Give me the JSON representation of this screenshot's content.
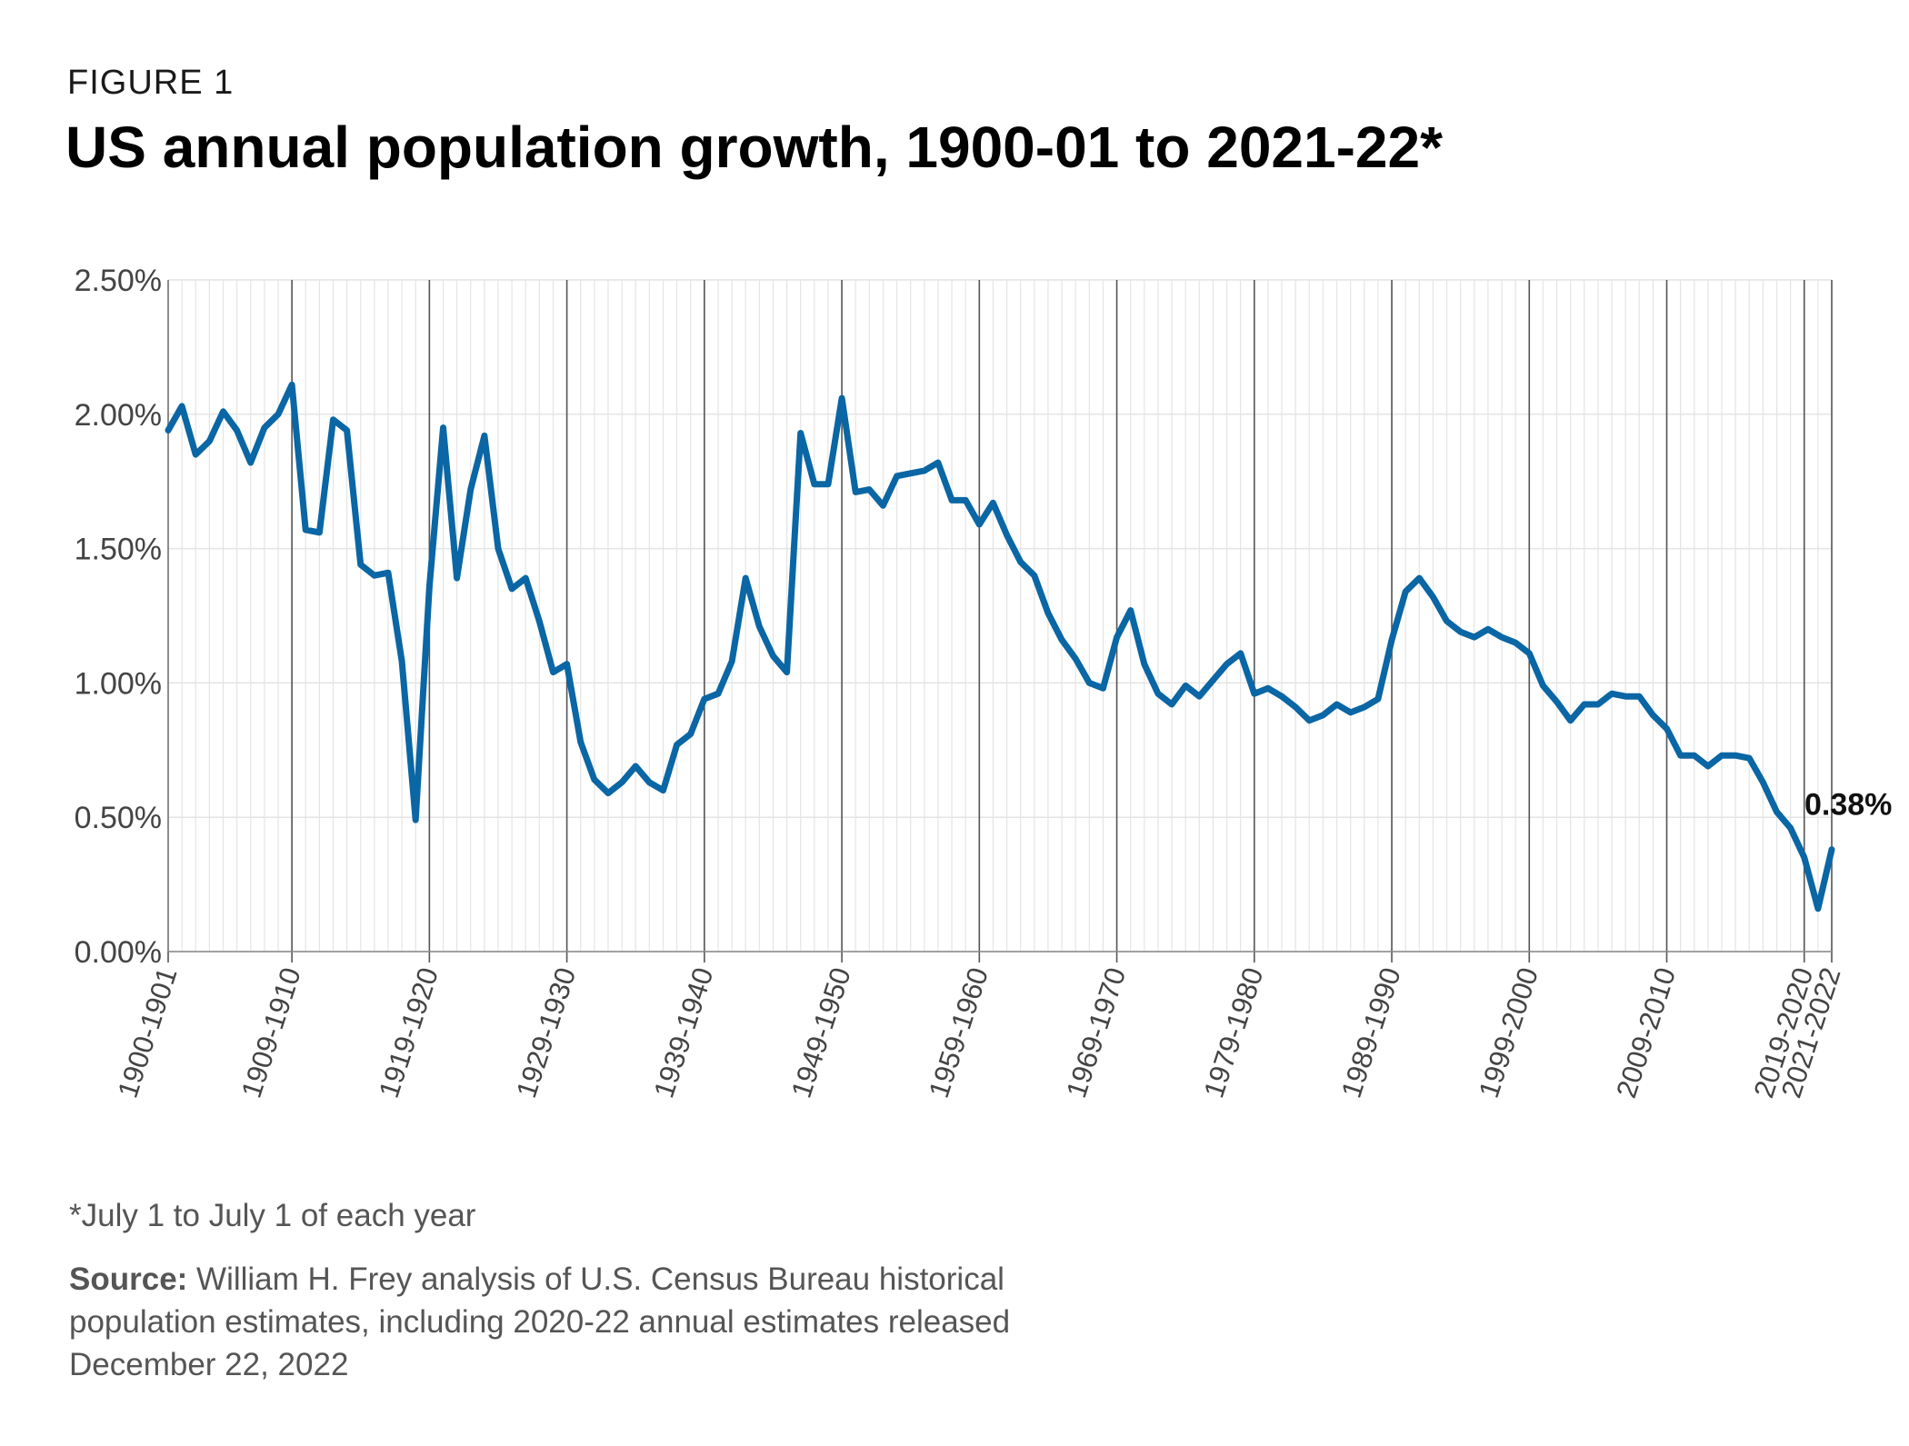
{
  "figure_label": "FIGURE 1",
  "title": "US annual population growth, 1900-01 to 2021-22*",
  "footnote": "*July 1 to July 1 of each year",
  "source_label": "Source:",
  "source_text": "William H. Frey analysis of U.S. Census Bureau historical population estimates, including 2020-22 annual estimates released December 22, 2022",
  "colors": {
    "line": "#0a66a4",
    "grid": "#e4e4e4",
    "major_grid": "#555555",
    "text": "#444444"
  },
  "chart_data": {
    "type": "line",
    "title": "US annual population growth, 1900-01 to 2021-22*",
    "xlabel": "",
    "ylabel": "",
    "ylim": [
      0,
      0.025
    ],
    "yticks": [
      0,
      0.005,
      0.01,
      0.015,
      0.02,
      0.025
    ],
    "ytick_labels": [
      "0.00%",
      "0.50%",
      "1.00%",
      "1.50%",
      "2.00%",
      "2.50%"
    ],
    "xtick_labels": [
      {
        "index": 0,
        "label": "1900-1901"
      },
      {
        "index": 9,
        "label": "1909-1910"
      },
      {
        "index": 19,
        "label": "1919-1920"
      },
      {
        "index": 29,
        "label": "1929-1930"
      },
      {
        "index": 39,
        "label": "1939-1940"
      },
      {
        "index": 49,
        "label": "1949-1950"
      },
      {
        "index": 59,
        "label": "1959-1960"
      },
      {
        "index": 69,
        "label": "1969-1970"
      },
      {
        "index": 79,
        "label": "1979-1980"
      },
      {
        "index": 89,
        "label": "1989-1990"
      },
      {
        "index": 99,
        "label": "1999-2000"
      },
      {
        "index": 109,
        "label": "2009-2010"
      },
      {
        "index": 119,
        "label": "2019-2020"
      },
      {
        "index": 121,
        "label": "2021-2022"
      }
    ],
    "grid": true,
    "annotation": {
      "index": 121,
      "label": "0.38%"
    },
    "series": [
      {
        "values": [
          1.94,
          2.03,
          1.85,
          1.9,
          2.01,
          1.94,
          1.82,
          1.95,
          2.0,
          2.11,
          1.57,
          1.56,
          1.98,
          1.94,
          1.44,
          1.4,
          1.41,
          1.08,
          0.49,
          1.36,
          1.95,
          1.39,
          1.72,
          1.92,
          1.5,
          1.35,
          1.39,
          1.23,
          1.04,
          1.07,
          0.78,
          0.64,
          0.59,
          0.63,
          0.69,
          0.63,
          0.6,
          0.77,
          0.81,
          0.94,
          0.96,
          1.08,
          1.39,
          1.21,
          1.1,
          1.04,
          1.93,
          1.74,
          1.74,
          2.06,
          1.71,
          1.72,
          1.66,
          1.77,
          1.78,
          1.79,
          1.82,
          1.68,
          1.68,
          1.59,
          1.67,
          1.55,
          1.45,
          1.4,
          1.26,
          1.16,
          1.09,
          1.0,
          0.98,
          1.17,
          1.27,
          1.07,
          0.96,
          0.92,
          0.99,
          0.95,
          1.01,
          1.07,
          1.11,
          0.96,
          0.98,
          0.95,
          0.91,
          0.86,
          0.88,
          0.92,
          0.89,
          0.91,
          0.94,
          1.16,
          1.34,
          1.39,
          1.32,
          1.23,
          1.19,
          1.17,
          1.2,
          1.17,
          1.15,
          1.11,
          0.99,
          0.93,
          0.86,
          0.92,
          0.92,
          0.96,
          0.95,
          0.95,
          0.88,
          0.83,
          0.73,
          0.73,
          0.69,
          0.73,
          0.73,
          0.72,
          0.63,
          0.52,
          0.46,
          0.35,
          0.16,
          0.38
        ]
      }
    ]
  }
}
